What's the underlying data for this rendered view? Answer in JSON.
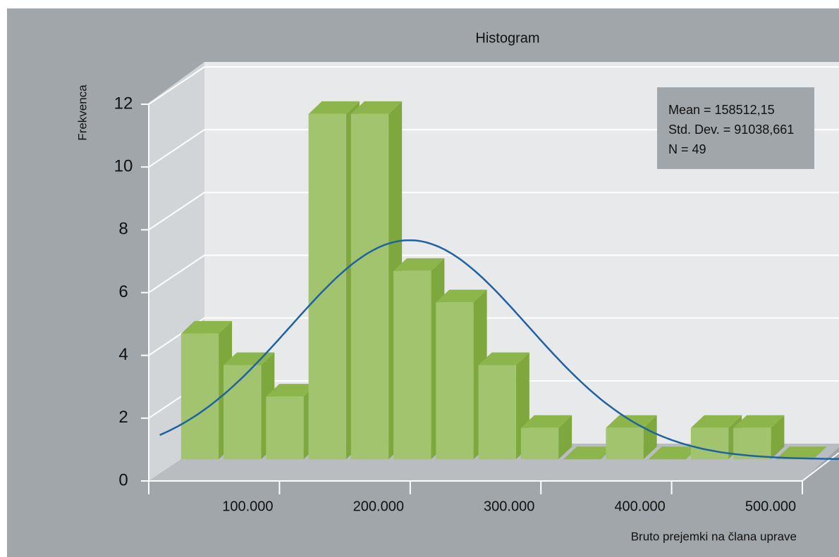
{
  "chart_data": {
    "type": "histogram",
    "title": "Histogram",
    "x_label": "Bruto prejemki na člana uprave",
    "y_label": "Frekvenca",
    "bins": [
      0,
      32500,
      65000,
      97500,
      130000,
      162500,
      195000,
      227500,
      260000,
      292500,
      325000,
      357500,
      390000,
      422500,
      455000,
      487500
    ],
    "values": [
      4,
      3,
      2,
      11,
      11,
      6,
      5,
      3,
      1,
      0,
      1,
      0,
      1,
      1,
      0
    ],
    "color": "#a3c46f",
    "xlim": [
      0,
      500000
    ],
    "xticks": [
      {
        "value": 100000,
        "label": "100.000"
      },
      {
        "value": 200000,
        "label": "200.000"
      },
      {
        "value": 300000,
        "label": "300.000"
      },
      {
        "value": 400000,
        "label": "400.000"
      },
      {
        "value": 500000,
        "label": "500.000"
      }
    ],
    "ylim": [
      0,
      12
    ],
    "yticks": [
      0,
      2,
      4,
      6,
      8,
      10,
      12
    ],
    "grid": true,
    "stats": [
      "Mean = 158512,15",
      "Std. Dev. = 91038,661",
      "N = 49"
    ],
    "normal_curve": {
      "mean": 158512.15,
      "sd": 91038.661,
      "n": 49,
      "color": "#1f62a3"
    }
  }
}
